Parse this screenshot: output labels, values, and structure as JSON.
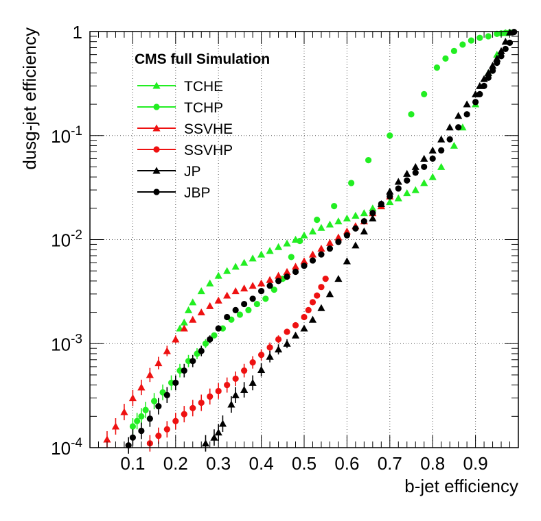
{
  "chart_data": {
    "type": "scatter",
    "title": "",
    "xlabel": "b-jet efficiency",
    "ylabel": "dusg-jet efficiency",
    "xlim": [
      0.0,
      1.0
    ],
    "ylim": [
      0.0001,
      1
    ],
    "yscale": "log",
    "grid": true,
    "x_ticks": [
      "0.1",
      "0.2",
      "0.3",
      "0.4",
      "0.5",
      "0.6",
      "0.7",
      "0.8",
      "0.9"
    ],
    "y_ticks": [
      {
        "base": "10",
        "exp": "-4"
      },
      {
        "base": "10",
        "exp": "-3"
      },
      {
        "base": "10",
        "exp": "-2"
      },
      {
        "base": "10",
        "exp": "-1"
      },
      {
        "base": "1",
        "exp": ""
      }
    ],
    "legend": {
      "title": "CMS full Simulation",
      "placement": "top-left",
      "entries": [
        "TCHE",
        "TCHP",
        "SSVHE",
        "SSVHP",
        "JP",
        "JBP"
      ]
    },
    "colors": {
      "green": "#22ee22",
      "red": "#ee1111",
      "black": "#000000",
      "grid": "#555555"
    },
    "series": [
      {
        "name": "TCHE",
        "color": "#22ee22",
        "marker": "triangle",
        "points": [
          [
            0.97,
            0.97
          ],
          [
            0.95,
            0.6
          ],
          [
            0.93,
            0.4
          ],
          [
            0.9,
            0.2
          ],
          [
            0.87,
            0.12
          ],
          [
            0.85,
            0.08
          ],
          [
            0.82,
            0.05
          ],
          [
            0.8,
            0.04
          ],
          [
            0.78,
            0.035
          ],
          [
            0.76,
            0.03
          ],
          [
            0.74,
            0.028
          ],
          [
            0.72,
            0.025
          ],
          [
            0.7,
            0.023
          ],
          [
            0.68,
            0.021
          ],
          [
            0.66,
            0.02
          ],
          [
            0.64,
            0.018
          ],
          [
            0.62,
            0.017
          ],
          [
            0.6,
            0.016
          ],
          [
            0.58,
            0.015
          ],
          [
            0.56,
            0.014
          ],
          [
            0.54,
            0.013
          ],
          [
            0.52,
            0.012
          ],
          [
            0.5,
            0.011
          ],
          [
            0.48,
            0.01
          ],
          [
            0.46,
            0.0092
          ],
          [
            0.44,
            0.0085
          ],
          [
            0.42,
            0.0078
          ],
          [
            0.4,
            0.0072
          ],
          [
            0.38,
            0.0066
          ],
          [
            0.36,
            0.006
          ],
          [
            0.34,
            0.0055
          ],
          [
            0.32,
            0.005
          ],
          [
            0.3,
            0.0045
          ],
          [
            0.28,
            0.0038
          ],
          [
            0.26,
            0.0032
          ],
          [
            0.24,
            0.0025
          ],
          [
            0.23,
            0.0021
          ],
          [
            0.22,
            0.0016
          ],
          [
            0.21,
            0.0014
          ]
        ]
      },
      {
        "name": "TCHP",
        "color": "#22ee22",
        "marker": "circle",
        "points": [
          [
            0.98,
            0.98
          ],
          [
            0.97,
            0.97
          ],
          [
            0.96,
            0.96
          ],
          [
            0.95,
            0.95
          ],
          [
            0.93,
            0.9
          ],
          [
            0.91,
            0.87
          ],
          [
            0.89,
            0.82
          ],
          [
            0.87,
            0.75
          ],
          [
            0.85,
            0.65
          ],
          [
            0.83,
            0.55
          ],
          [
            0.81,
            0.45
          ],
          [
            0.78,
            0.25
          ],
          [
            0.75,
            0.16
          ],
          [
            0.7,
            0.1
          ],
          [
            0.65,
            0.058
          ],
          [
            0.61,
            0.035
          ],
          [
            0.57,
            0.021
          ],
          [
            0.53,
            0.0155
          ],
          [
            0.49,
            0.0097
          ],
          [
            0.47,
            0.0068
          ],
          [
            0.45,
            0.0042
          ],
          [
            0.43,
            0.0033
          ],
          [
            0.41,
            0.0027
          ],
          [
            0.39,
            0.0024
          ],
          [
            0.37,
            0.0021
          ],
          [
            0.35,
            0.0019
          ],
          [
            0.33,
            0.0017
          ],
          [
            0.31,
            0.0014
          ],
          [
            0.29,
            0.0012
          ],
          [
            0.27,
            0.001
          ],
          [
            0.25,
            0.0008
          ],
          [
            0.23,
            0.00068
          ],
          [
            0.21,
            0.00055
          ],
          [
            0.19,
            0.00042
          ],
          [
            0.17,
            0.00034
          ],
          [
            0.15,
            0.00028
          ],
          [
            0.13,
            0.00023
          ],
          [
            0.12,
            0.0002
          ],
          [
            0.11,
            0.00018
          ],
          [
            0.1,
            0.00016
          ]
        ]
      },
      {
        "name": "SSVHE",
        "color": "#ee1111",
        "marker": "triangle",
        "points": [
          [
            0.7,
            0.026
          ],
          [
            0.68,
            0.021
          ],
          [
            0.66,
            0.018
          ],
          [
            0.64,
            0.015
          ],
          [
            0.62,
            0.0135
          ],
          [
            0.6,
            0.012
          ],
          [
            0.58,
            0.0105
          ],
          [
            0.56,
            0.0093
          ],
          [
            0.54,
            0.0082
          ],
          [
            0.52,
            0.0072
          ],
          [
            0.5,
            0.0062
          ],
          [
            0.48,
            0.0055
          ],
          [
            0.46,
            0.0049
          ],
          [
            0.44,
            0.0045
          ],
          [
            0.42,
            0.0041
          ],
          [
            0.4,
            0.0038
          ],
          [
            0.38,
            0.0036
          ],
          [
            0.36,
            0.0034
          ],
          [
            0.34,
            0.0032
          ],
          [
            0.32,
            0.0029
          ],
          [
            0.3,
            0.0026
          ],
          [
            0.28,
            0.0023
          ],
          [
            0.26,
            0.002
          ],
          [
            0.24,
            0.0017
          ],
          [
            0.22,
            0.0014
          ],
          [
            0.2,
            0.0011
          ],
          [
            0.18,
            0.00085
          ],
          [
            0.16,
            0.00065
          ],
          [
            0.14,
            0.0005
          ],
          [
            0.12,
            0.00038
          ],
          [
            0.1,
            0.0003
          ],
          [
            0.08,
            0.00022
          ],
          [
            0.06,
            0.00016
          ],
          [
            0.04,
            0.00012
          ]
        ]
      },
      {
        "name": "SSVHP",
        "color": "#ee1111",
        "marker": "circle",
        "points": [
          [
            0.55,
            0.0042
          ],
          [
            0.54,
            0.0035
          ],
          [
            0.53,
            0.0029
          ],
          [
            0.52,
            0.0025
          ],
          [
            0.51,
            0.0021
          ],
          [
            0.5,
            0.0018
          ],
          [
            0.48,
            0.0015
          ],
          [
            0.46,
            0.0013
          ],
          [
            0.44,
            0.0011
          ],
          [
            0.42,
            0.00092
          ],
          [
            0.4,
            0.00078
          ],
          [
            0.38,
            0.00066
          ],
          [
            0.36,
            0.00055
          ],
          [
            0.34,
            0.00046
          ],
          [
            0.32,
            0.0004
          ],
          [
            0.3,
            0.00035
          ],
          [
            0.28,
            0.00031
          ],
          [
            0.26,
            0.00027
          ],
          [
            0.24,
            0.00024
          ],
          [
            0.22,
            0.00021
          ],
          [
            0.2,
            0.00018
          ],
          [
            0.18,
            0.00015
          ],
          [
            0.16,
            0.00013
          ],
          [
            0.14,
            0.00011
          ]
        ]
      },
      {
        "name": "JP",
        "color": "#000000",
        "marker": "triangle",
        "points": [
          [
            0.98,
            0.98
          ],
          [
            0.97,
            0.8
          ],
          [
            0.96,
            0.65
          ],
          [
            0.95,
            0.55
          ],
          [
            0.94,
            0.47
          ],
          [
            0.93,
            0.4
          ],
          [
            0.92,
            0.35
          ],
          [
            0.91,
            0.3
          ],
          [
            0.9,
            0.25
          ],
          [
            0.88,
            0.2
          ],
          [
            0.86,
            0.155
          ],
          [
            0.84,
            0.12
          ],
          [
            0.82,
            0.092
          ],
          [
            0.8,
            0.072
          ],
          [
            0.78,
            0.06
          ],
          [
            0.76,
            0.05
          ],
          [
            0.74,
            0.043
          ],
          [
            0.72,
            0.036
          ],
          [
            0.7,
            0.029
          ],
          [
            0.68,
            0.022
          ],
          [
            0.66,
            0.016
          ],
          [
            0.64,
            0.012
          ],
          [
            0.62,
            0.0088
          ],
          [
            0.6,
            0.0062
          ],
          [
            0.58,
            0.0042
          ],
          [
            0.56,
            0.003
          ],
          [
            0.54,
            0.0022
          ],
          [
            0.52,
            0.0017
          ],
          [
            0.5,
            0.0014
          ],
          [
            0.48,
            0.0012
          ],
          [
            0.46,
            0.001
          ],
          [
            0.44,
            0.00088
          ],
          [
            0.42,
            0.00075
          ],
          [
            0.4,
            0.00056
          ],
          [
            0.38,
            0.00042
          ],
          [
            0.36,
            0.00036
          ],
          [
            0.34,
            0.00032
          ],
          [
            0.33,
            0.00026
          ],
          [
            0.31,
            0.00017
          ],
          [
            0.3,
            0.00014
          ],
          [
            0.29,
            0.000125
          ],
          [
            0.27,
            0.00011
          ]
        ]
      },
      {
        "name": "JBP",
        "color": "#000000",
        "marker": "circle",
        "points": [
          [
            0.99,
            0.99
          ],
          [
            0.98,
            0.78
          ],
          [
            0.97,
            0.68
          ],
          [
            0.96,
            0.58
          ],
          [
            0.95,
            0.5
          ],
          [
            0.94,
            0.42
          ],
          [
            0.93,
            0.36
          ],
          [
            0.92,
            0.3
          ],
          [
            0.91,
            0.25
          ],
          [
            0.9,
            0.21
          ],
          [
            0.88,
            0.16
          ],
          [
            0.86,
            0.12
          ],
          [
            0.84,
            0.092
          ],
          [
            0.82,
            0.072
          ],
          [
            0.8,
            0.06
          ],
          [
            0.78,
            0.05
          ],
          [
            0.76,
            0.044
          ],
          [
            0.74,
            0.037
          ],
          [
            0.72,
            0.031
          ],
          [
            0.7,
            0.026
          ],
          [
            0.68,
            0.022
          ],
          [
            0.66,
            0.018
          ],
          [
            0.64,
            0.015
          ],
          [
            0.62,
            0.0128
          ],
          [
            0.6,
            0.011
          ],
          [
            0.58,
            0.0095
          ],
          [
            0.56,
            0.0082
          ],
          [
            0.54,
            0.0072
          ],
          [
            0.52,
            0.0063
          ],
          [
            0.5,
            0.0056
          ],
          [
            0.48,
            0.0049
          ],
          [
            0.46,
            0.0044
          ],
          [
            0.44,
            0.004
          ],
          [
            0.42,
            0.0036
          ],
          [
            0.4,
            0.0032
          ],
          [
            0.38,
            0.0027
          ],
          [
            0.36,
            0.0024
          ],
          [
            0.34,
            0.0021
          ],
          [
            0.32,
            0.0018
          ],
          [
            0.3,
            0.0014
          ],
          [
            0.28,
            0.0011
          ],
          [
            0.26,
            0.00085
          ],
          [
            0.24,
            0.00068
          ],
          [
            0.22,
            0.00055
          ],
          [
            0.2,
            0.00042
          ],
          [
            0.18,
            0.00032
          ],
          [
            0.16,
            0.00025
          ],
          [
            0.14,
            0.00019
          ],
          [
            0.12,
            0.000145
          ],
          [
            0.1,
            0.000125
          ],
          [
            0.09,
            0.000105
          ]
        ]
      }
    ]
  }
}
